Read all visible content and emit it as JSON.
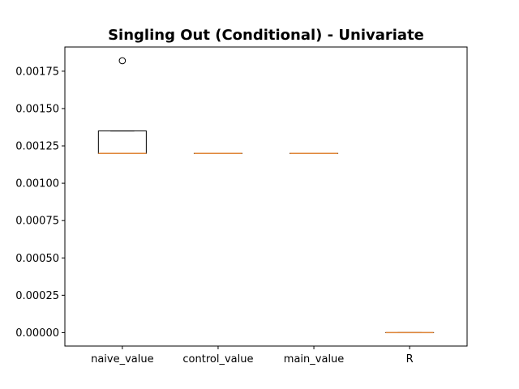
{
  "chart_data": {
    "type": "box",
    "title": "Singling Out (Conditional) - Univariate",
    "xlabel": "",
    "ylabel": "",
    "categories": [
      "naive_value",
      "control_value",
      "main_value",
      "R"
    ],
    "ylim": [
      -9e-05,
      0.001912
    ],
    "yticks": [
      0.0,
      0.00025,
      0.0005,
      0.00075,
      0.001,
      0.00125,
      0.0015,
      0.00175
    ],
    "ytick_labels": [
      "0.00000",
      "0.00025",
      "0.00050",
      "0.00075",
      "0.00100",
      "0.00125",
      "0.00150",
      "0.00175"
    ],
    "boxes": [
      {
        "category": "naive_value",
        "whisker_low": 0.0012,
        "q1": 0.0012,
        "median": 0.0012,
        "q3": 0.00135,
        "whisker_high": 0.00135,
        "outliers": [
          0.00182
        ]
      },
      {
        "category": "control_value",
        "whisker_low": 0.0012,
        "q1": 0.0012,
        "median": 0.0012,
        "q3": 0.0012,
        "whisker_high": 0.0012,
        "outliers": []
      },
      {
        "category": "main_value",
        "whisker_low": 0.0012,
        "q1": 0.0012,
        "median": 0.0012,
        "q3": 0.0012,
        "whisker_high": 0.0012,
        "outliers": []
      },
      {
        "category": "R",
        "whisker_low": 0.0,
        "q1": 0.0,
        "median": 0.0,
        "q3": 0.0,
        "whisker_high": 0.0,
        "outliers": []
      }
    ],
    "colors": {
      "box": "#000000",
      "median": "#e0873a",
      "frame": "#000000"
    },
    "grid": false,
    "legend": "none"
  }
}
